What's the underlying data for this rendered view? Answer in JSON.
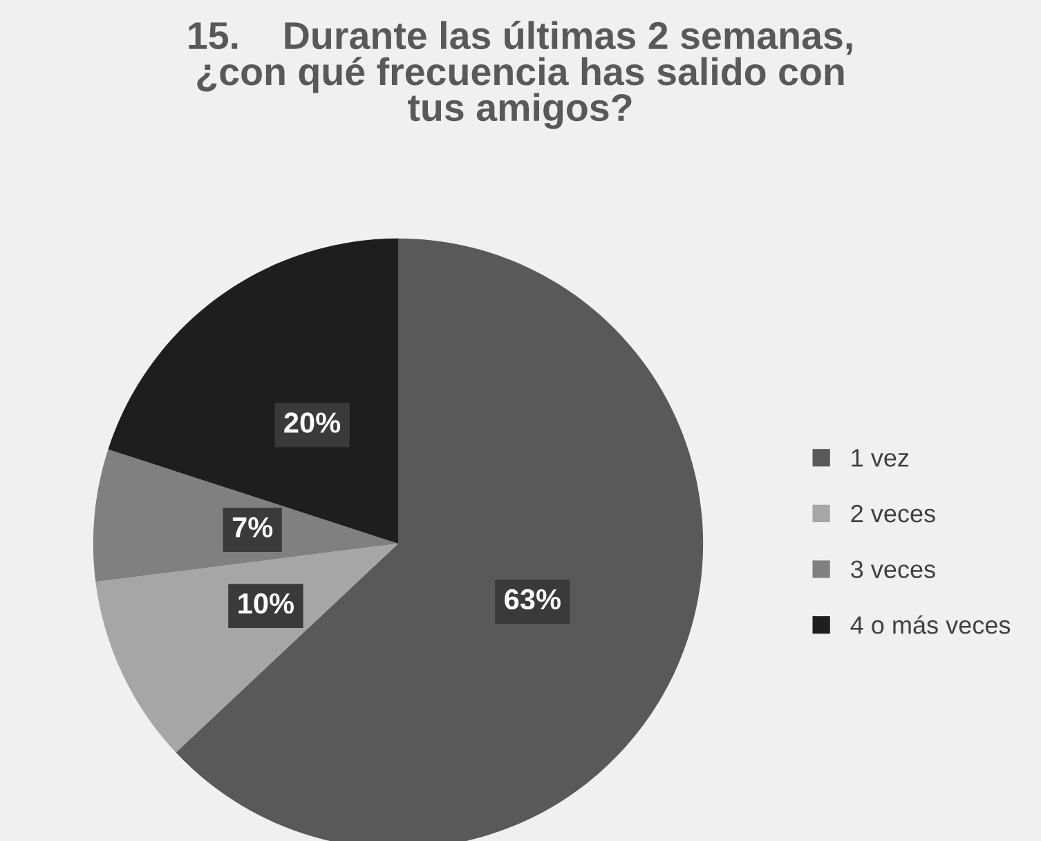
{
  "chart_data": {
    "type": "pie",
    "title": "15.    Durante las últimas 2 semanas,\n¿con qué frecuencia has salido con\ntus amigos?",
    "categories": [
      "1 vez",
      "2 veces",
      "3 veces",
      "4 o más veces"
    ],
    "values": [
      63,
      10,
      7,
      20
    ],
    "colors": [
      "#595959",
      "#a6a6a6",
      "#808080",
      "#1e1e1e"
    ],
    "value_labels": [
      "63%",
      "10%",
      "7%",
      "20%"
    ],
    "legend": "right"
  }
}
